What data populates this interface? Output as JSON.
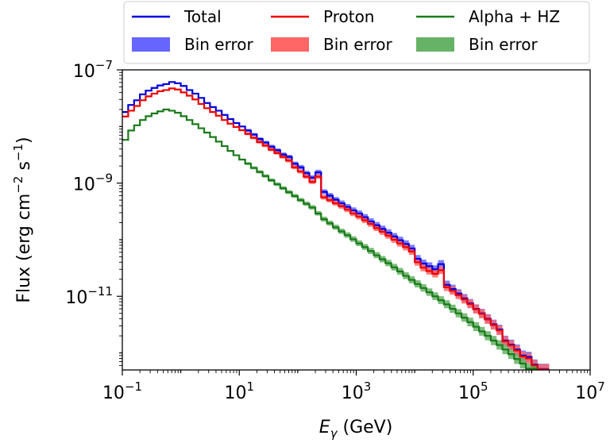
{
  "chart_data": {
    "type": "line",
    "style": "step",
    "x_scale": "log",
    "y_scale": "log",
    "xlabel_base": "E",
    "xlabel_sub": "γ",
    "xlabel_unit": " (GeV)",
    "ylabel_prefix": "Flux (erg cm",
    "ylabel_exp1": "−2",
    "ylabel_mid": " s",
    "ylabel_exp2": "−1",
    "ylabel_suffix": ")",
    "xlim": [
      0.1,
      10000000
    ],
    "ylim": [
      5e-13,
      1e-07
    ],
    "x_ticks": [
      {
        "base": "10",
        "exp": "−1"
      },
      {
        "base": "10",
        "exp": "1"
      },
      {
        "base": "10",
        "exp": "3"
      },
      {
        "base": "10",
        "exp": "5"
      },
      {
        "base": "10",
        "exp": "7"
      }
    ],
    "y_ticks": [
      {
        "base": "10",
        "exp": "−7"
      },
      {
        "base": "10",
        "exp": "−9"
      },
      {
        "base": "10",
        "exp": "−11"
      }
    ],
    "x_tick_values": [
      0.1,
      10,
      1000,
      100000,
      10000000
    ],
    "y_tick_values": [
      1e-07,
      1e-09,
      1e-11
    ],
    "grid": false,
    "legend": {
      "placement": "top-center",
      "entries": [
        {
          "label": "Total",
          "kind": "line",
          "color": "#0000dd"
        },
        {
          "label": "Proton",
          "kind": "line",
          "color": "#ee0000"
        },
        {
          "label": "Alpha + HZ",
          "kind": "line",
          "color": "#1a7a1a"
        },
        {
          "label": "Bin error",
          "kind": "band",
          "color": "#6666ff"
        },
        {
          "label": "Bin error",
          "kind": "band",
          "color": "#ff6666"
        },
        {
          "label": "Bin error",
          "kind": "band",
          "color": "#66b266"
        }
      ]
    },
    "series": [
      {
        "name": "Total",
        "color": "#0000dd",
        "band_color": "#6666ff",
        "points": [
          [
            0.1,
            1.8e-08
          ],
          [
            0.126,
            2.4e-08
          ],
          [
            0.159,
            2.9e-08
          ],
          [
            0.2,
            3.7e-08
          ],
          [
            0.251,
            4.3e-08
          ],
          [
            0.316,
            4.8e-08
          ],
          [
            0.398,
            5.3e-08
          ],
          [
            0.501,
            5.6e-08
          ],
          [
            0.631,
            6.1e-08
          ],
          [
            0.794,
            5.8e-08
          ],
          [
            1.0,
            5.2e-08
          ],
          [
            1.26,
            4.4e-08
          ],
          [
            1.58,
            3.8e-08
          ],
          [
            2.0,
            3.2e-08
          ],
          [
            2.51,
            2.6e-08
          ],
          [
            3.16,
            2.2e-08
          ],
          [
            3.98,
            1.9e-08
          ],
          [
            5.01,
            1.6e-08
          ],
          [
            6.31,
            1.35e-08
          ],
          [
            7.94,
            1.15e-08
          ],
          [
            10.0,
            1e-08
          ],
          [
            12.6,
            8.5e-09
          ],
          [
            15.8,
            7.2e-09
          ],
          [
            20.0,
            6e-09
          ],
          [
            25.1,
            5.2e-09
          ],
          [
            31.6,
            4.4e-09
          ],
          [
            39.8,
            3.8e-09
          ],
          [
            50.1,
            3.2e-09
          ],
          [
            63.1,
            2.9e-09
          ],
          [
            79.4,
            2.2e-09
          ],
          [
            100,
            1.9e-09
          ],
          [
            126,
            1.5e-09
          ],
          [
            158,
            1.25e-09
          ],
          [
            200,
            1.55e-09
          ],
          [
            251,
            7e-10
          ],
          [
            316,
            6e-10
          ],
          [
            398,
            5.1e-10
          ],
          [
            501,
            4.4e-10
          ],
          [
            631,
            3.8e-10
          ],
          [
            794,
            3.3e-10
          ],
          [
            1000,
            2.9e-10
          ],
          [
            1260,
            2.5e-10
          ],
          [
            1580,
            2.1e-10
          ],
          [
            2000,
            1.8e-10
          ],
          [
            2510,
            1.55e-10
          ],
          [
            3160,
            1.33e-10
          ],
          [
            3980,
            1.14e-10
          ],
          [
            5010,
            9.8e-11
          ],
          [
            6310,
            8.4e-11
          ],
          [
            7940,
            7e-11
          ],
          [
            10000,
            4.6e-11
          ],
          [
            12600,
            3.8e-11
          ],
          [
            15800,
            3.4e-11
          ],
          [
            20000,
            3e-11
          ],
          [
            25100,
            3.7e-11
          ],
          [
            31600,
            1.6e-11
          ],
          [
            39800,
            1.35e-11
          ],
          [
            50100,
            1.12e-11
          ],
          [
            63100,
            9.2e-12
          ],
          [
            79400,
            7.5e-12
          ],
          [
            100000,
            6e-12
          ],
          [
            126000,
            5e-12
          ],
          [
            158000,
            4e-12
          ],
          [
            200000,
            3.2e-12
          ],
          [
            251000,
            2.6e-12
          ],
          [
            316000,
            1.65e-12
          ],
          [
            398000,
            1.4e-12
          ],
          [
            501000,
            1.15e-12
          ],
          [
            631000,
            9e-13
          ],
          [
            794000,
            8.5e-13
          ],
          [
            1000000,
            6.2e-13
          ],
          [
            1260000,
            5.2e-13
          ],
          [
            1580000,
            5.2e-13
          ]
        ]
      },
      {
        "name": "Proton",
        "color": "#ee0000",
        "band_color": "#ff6666",
        "points": [
          [
            0.1,
            1.5e-08
          ],
          [
            0.126,
            1.9e-08
          ],
          [
            0.159,
            2.3e-08
          ],
          [
            0.2,
            2.9e-08
          ],
          [
            0.251,
            3.4e-08
          ],
          [
            0.316,
            3.8e-08
          ],
          [
            0.398,
            4.2e-08
          ],
          [
            0.501,
            4.4e-08
          ],
          [
            0.631,
            4.7e-08
          ],
          [
            0.794,
            4.5e-08
          ],
          [
            1.0,
            4e-08
          ],
          [
            1.26,
            3.5e-08
          ],
          [
            1.58,
            3e-08
          ],
          [
            2.0,
            2.5e-08
          ],
          [
            2.51,
            2.1e-08
          ],
          [
            3.16,
            1.8e-08
          ],
          [
            3.98,
            1.55e-08
          ],
          [
            5.01,
            1.3e-08
          ],
          [
            6.31,
            1.12e-08
          ],
          [
            7.94,
            9.8e-09
          ],
          [
            10.0,
            8.6e-09
          ],
          [
            12.6,
            7.4e-09
          ],
          [
            15.8,
            6.3e-09
          ],
          [
            20.0,
            5.3e-09
          ],
          [
            25.1,
            4.6e-09
          ],
          [
            31.6,
            3.9e-09
          ],
          [
            39.8,
            3.4e-09
          ],
          [
            50.1,
            2.9e-09
          ],
          [
            63.1,
            2.5e-09
          ],
          [
            79.4,
            1.9e-09
          ],
          [
            100,
            1.6e-09
          ],
          [
            126,
            1.3e-09
          ],
          [
            158,
            1.05e-09
          ],
          [
            200,
            1.3e-09
          ],
          [
            251,
            5.6e-10
          ],
          [
            316,
            5e-10
          ],
          [
            398,
            4.4e-10
          ],
          [
            501,
            3.9e-10
          ],
          [
            631,
            3.4e-10
          ],
          [
            794,
            2.9e-10
          ],
          [
            1000,
            2.55e-10
          ],
          [
            1260,
            2.2e-10
          ],
          [
            1580,
            1.9e-10
          ],
          [
            2000,
            1.6e-10
          ],
          [
            2510,
            1.38e-10
          ],
          [
            3160,
            1.18e-10
          ],
          [
            3980,
            1e-10
          ],
          [
            5010,
            8.6e-11
          ],
          [
            6310,
            7.4e-11
          ],
          [
            7940,
            6.2e-11
          ],
          [
            10000,
            4e-11
          ],
          [
            12600,
            3.2e-11
          ],
          [
            15800,
            2.8e-11
          ],
          [
            20000,
            2.5e-11
          ],
          [
            25100,
            2.9e-11
          ],
          [
            31600,
            1.45e-11
          ],
          [
            39800,
            1.25e-11
          ],
          [
            50100,
            1.05e-11
          ],
          [
            63100,
            8.8e-12
          ],
          [
            79400,
            7.3e-12
          ],
          [
            100000,
            5.9e-12
          ],
          [
            126000,
            4.9e-12
          ],
          [
            158000,
            3.9e-12
          ],
          [
            200000,
            3.1e-12
          ],
          [
            251000,
            2.5e-12
          ],
          [
            316000,
            1.6e-12
          ],
          [
            398000,
            1.35e-12
          ],
          [
            501000,
            1.1e-12
          ],
          [
            631000,
            8.6e-13
          ],
          [
            794000,
            8e-13
          ],
          [
            1000000,
            6e-13
          ],
          [
            1260000,
            5.1e-13
          ],
          [
            1580000,
            5.1e-13
          ]
        ]
      },
      {
        "name": "Alpha + HZ",
        "color": "#1a7a1a",
        "band_color": "#66b266",
        "points": [
          [
            0.1,
            5.8e-09
          ],
          [
            0.126,
            8.5e-09
          ],
          [
            0.159,
            1.05e-08
          ],
          [
            0.2,
            1.3e-08
          ],
          [
            0.251,
            1.52e-08
          ],
          [
            0.316,
            1.7e-08
          ],
          [
            0.398,
            1.85e-08
          ],
          [
            0.501,
            2e-08
          ],
          [
            0.631,
            1.9e-08
          ],
          [
            0.794,
            1.75e-08
          ],
          [
            1.0,
            1.52e-08
          ],
          [
            1.26,
            1.3e-08
          ],
          [
            1.58,
            1.1e-08
          ],
          [
            2.0,
            9.3e-09
          ],
          [
            2.51,
            7.8e-09
          ],
          [
            3.16,
            6.5e-09
          ],
          [
            3.98,
            5.4e-09
          ],
          [
            5.01,
            4.5e-09
          ],
          [
            6.31,
            3.7e-09
          ],
          [
            7.94,
            3.1e-09
          ],
          [
            10.0,
            2.6e-09
          ],
          [
            12.6,
            2.2e-09
          ],
          [
            15.8,
            1.85e-09
          ],
          [
            20.0,
            1.57e-09
          ],
          [
            25.1,
            1.33e-09
          ],
          [
            31.6,
            1.12e-09
          ],
          [
            39.8,
            9.5e-10
          ],
          [
            50.1,
            8.1e-10
          ],
          [
            63.1,
            6.9e-10
          ],
          [
            79.4,
            5.9e-10
          ],
          [
            100,
            5e-10
          ],
          [
            126,
            4.3e-10
          ],
          [
            158,
            3.7e-10
          ],
          [
            200,
            2.9e-10
          ],
          [
            251,
            2.3e-10
          ],
          [
            316,
            1.95e-10
          ],
          [
            398,
            1.65e-10
          ],
          [
            501,
            1.4e-10
          ],
          [
            631,
            1.2e-10
          ],
          [
            794,
            1.02e-10
          ],
          [
            1000,
            8.6e-11
          ],
          [
            1260,
            7.4e-11
          ],
          [
            1580,
            6.3e-11
          ],
          [
            2000,
            5.3e-11
          ],
          [
            2510,
            4.5e-11
          ],
          [
            3160,
            3.85e-11
          ],
          [
            3980,
            3.25e-11
          ],
          [
            5010,
            2.75e-11
          ],
          [
            6310,
            2.3e-11
          ],
          [
            7940,
            1.95e-11
          ],
          [
            10000,
            1.65e-11
          ],
          [
            12600,
            1.4e-11
          ],
          [
            15800,
            1.18e-11
          ],
          [
            20000,
            1e-11
          ],
          [
            25100,
            8.5e-12
          ],
          [
            31600,
            7.2e-12
          ],
          [
            39800,
            6e-12
          ],
          [
            50100,
            5e-12
          ],
          [
            63100,
            4.2e-12
          ],
          [
            79400,
            3.5e-12
          ],
          [
            100000,
            2.9e-12
          ],
          [
            126000,
            2.4e-12
          ],
          [
            158000,
            2e-12
          ],
          [
            200000,
            1.65e-12
          ],
          [
            251000,
            1.38e-12
          ],
          [
            316000,
            1.15e-12
          ],
          [
            398000,
            9.5e-13
          ],
          [
            501000,
            7.8e-13
          ],
          [
            631000,
            6.5e-13
          ],
          [
            794000,
            5.3e-13
          ],
          [
            1000000,
            5.3e-13
          ]
        ]
      }
    ]
  }
}
